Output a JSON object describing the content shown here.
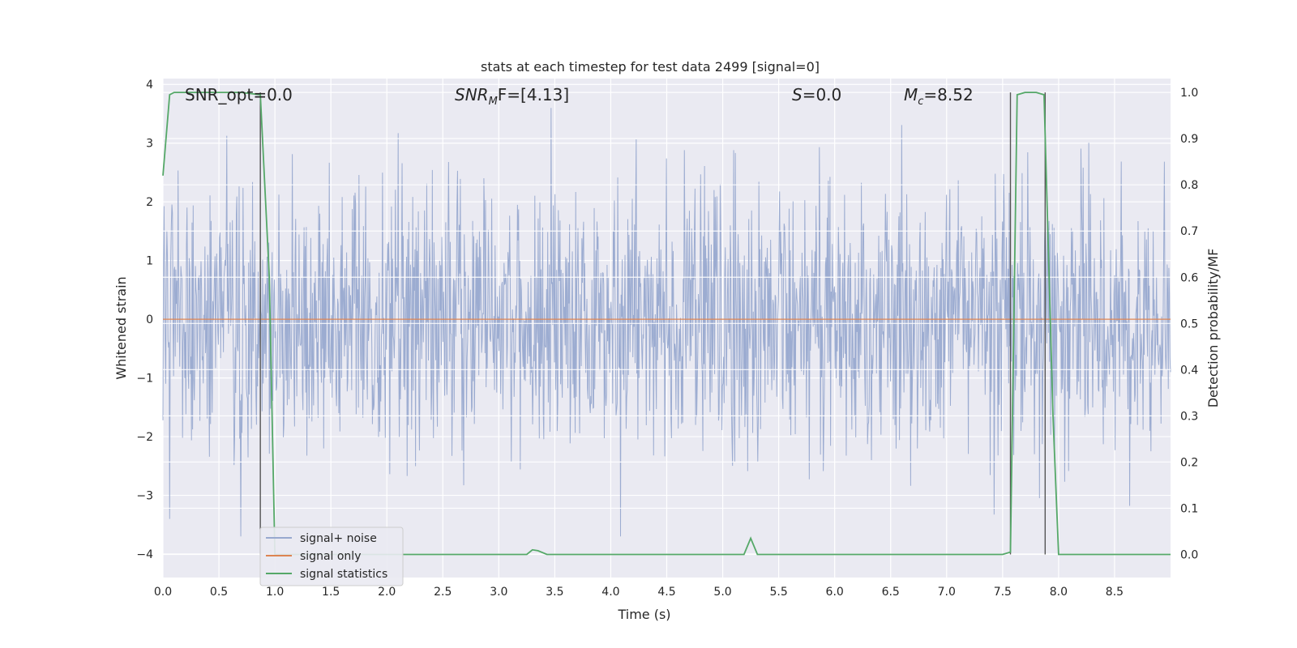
{
  "chart_data": {
    "type": "line",
    "title": "stats at each timestep for test data 2499 [signal=0]",
    "xlabel": "Time (s)",
    "ylabel_left": "Whitened strain",
    "ylabel_right": "Detection probability/MF",
    "xlim": [
      0.0,
      9.0
    ],
    "ylim_left": [
      -4.4,
      4.1
    ],
    "ylim_right": [
      -0.05,
      1.03
    ],
    "x_ticks": [
      "0.0",
      "0.5",
      "1.0",
      "1.5",
      "2.0",
      "2.5",
      "3.0",
      "3.5",
      "4.0",
      "4.5",
      "5.0",
      "5.5",
      "6.0",
      "6.5",
      "7.0",
      "7.5",
      "8.0",
      "8.5"
    ],
    "y_ticks_left": [
      "4",
      "3",
      "2",
      "1",
      "0",
      "−1",
      "−2",
      "−3",
      "−4"
    ],
    "y_ticks_right": [
      "1.0",
      "0.9",
      "0.8",
      "0.7",
      "0.6",
      "0.5",
      "0.4",
      "0.3",
      "0.2",
      "0.1",
      "0.0"
    ],
    "grid": true,
    "legend_position": "lower-left",
    "annotations": {
      "snr_opt": "SNR_opt=0.0",
      "snr_mf_base": "SNR",
      "snr_mf_sub": "M",
      "snr_mf_rest": "F=[4.13]",
      "s_sym": "S",
      "s_val": "=0.0",
      "mc_base": "M",
      "mc_sub": "c",
      "mc_val": "=8.52"
    },
    "series": [
      {
        "name": "signal+ noise",
        "axis": "left",
        "color": "#98a9cf",
        "description_range": [
          -3.7,
          3.6
        ],
        "envelope": "noise"
      },
      {
        "name": "signal only",
        "axis": "left",
        "color": "#dd8452",
        "x": [
          0.0,
          9.0
        ],
        "y": [
          0.0,
          0.0
        ]
      },
      {
        "name": "signal statistics",
        "axis": "right",
        "color": "#55a868",
        "x": [
          0.0,
          0.06,
          0.1,
          0.2,
          0.3,
          0.5,
          0.7,
          0.87,
          0.95,
          1.0,
          1.3,
          2.0,
          3.0,
          3.25,
          3.3,
          3.35,
          3.43,
          3.5,
          4.0,
          5.0,
          5.19,
          5.25,
          5.31,
          5.4,
          6.0,
          7.0,
          7.5,
          7.57,
          7.63,
          7.7,
          7.8,
          7.87,
          7.95,
          8.0,
          8.5,
          9.0
        ],
        "y": [
          0.82,
          0.995,
          1.0,
          1.0,
          1.0,
          1.0,
          1.0,
          0.995,
          0.6,
          0.0,
          0.0,
          0.0,
          0.0,
          0.0,
          0.01,
          0.008,
          0.0,
          0.0,
          0.0,
          0.0,
          0.0,
          0.035,
          0.0,
          0.0,
          0.0,
          0.0,
          0.0,
          0.005,
          0.995,
          1.0,
          1.0,
          0.995,
          0.3,
          0.0,
          0.0,
          0.0
        ]
      }
    ],
    "vertical_lines_x": [
      0.87,
      7.57,
      7.88
    ]
  },
  "colors": {
    "background": "#eaeaf2",
    "grid": "#ffffff",
    "vline": "#555555"
  }
}
